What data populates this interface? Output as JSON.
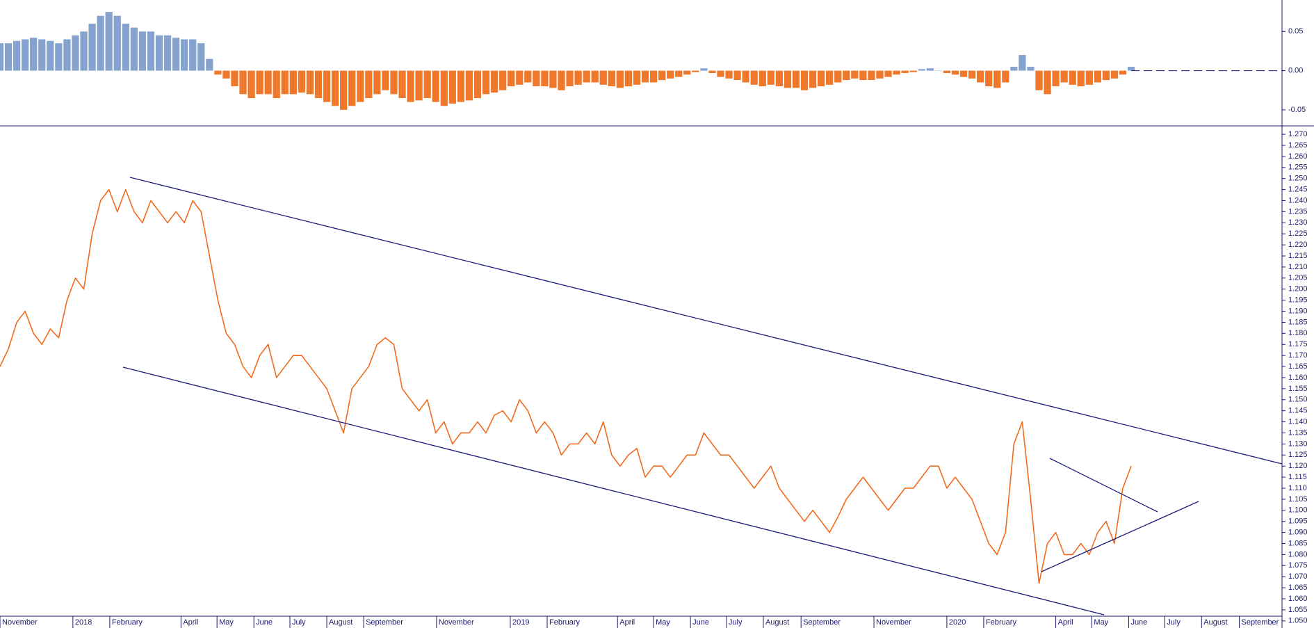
{
  "chart_data": [
    {
      "type": "bar",
      "color_positive": "#86a3cf",
      "color_negative": "#f0782a",
      "x": [
        0,
        1,
        2,
        3,
        4,
        5,
        6,
        7,
        8,
        9,
        10,
        11,
        12,
        13,
        14,
        15,
        16,
        17,
        18,
        19,
        20,
        21,
        22,
        23,
        24,
        25,
        26,
        27,
        28,
        29,
        30,
        31,
        32,
        33,
        34,
        35,
        36,
        37,
        38,
        39,
        40,
        41,
        42,
        43,
        44,
        45,
        46,
        47,
        48,
        49,
        50,
        51,
        52,
        53,
        54,
        55,
        56,
        57,
        58,
        59,
        60,
        61,
        62,
        63,
        64,
        65,
        66,
        67,
        68,
        69,
        70,
        71,
        72,
        73,
        74,
        75,
        76,
        77,
        78,
        79,
        80,
        81,
        82,
        83,
        84,
        85,
        86,
        87,
        88,
        89,
        90,
        91,
        92,
        93,
        94,
        95,
        96,
        97,
        98,
        99,
        100,
        101,
        102,
        103,
        104,
        105,
        106,
        107,
        108,
        109,
        110,
        111,
        112,
        113,
        114,
        115,
        116,
        117,
        118,
        119,
        120,
        121,
        122,
        123,
        124,
        125,
        126,
        127,
        128,
        129,
        130,
        131,
        132,
        133,
        134,
        135
      ],
      "values": [
        0.035,
        0.035,
        0.038,
        0.04,
        0.042,
        0.04,
        0.038,
        0.035,
        0.04,
        0.045,
        0.05,
        0.06,
        0.07,
        0.075,
        0.07,
        0.06,
        0.055,
        0.05,
        0.05,
        0.045,
        0.045,
        0.042,
        0.04,
        0.04,
        0.035,
        0.015,
        -0.005,
        -0.01,
        -0.02,
        -0.03,
        -0.035,
        -0.03,
        -0.03,
        -0.035,
        -0.03,
        -0.03,
        -0.028,
        -0.03,
        -0.035,
        -0.04,
        -0.045,
        -0.05,
        -0.045,
        -0.04,
        -0.035,
        -0.03,
        -0.025,
        -0.03,
        -0.035,
        -0.04,
        -0.038,
        -0.035,
        -0.04,
        -0.045,
        -0.042,
        -0.04,
        -0.038,
        -0.035,
        -0.03,
        -0.028,
        -0.025,
        -0.02,
        -0.018,
        -0.015,
        -0.02,
        -0.02,
        -0.022,
        -0.025,
        -0.02,
        -0.018,
        -0.015,
        -0.015,
        -0.018,
        -0.02,
        -0.022,
        -0.02,
        -0.018,
        -0.015,
        -0.015,
        -0.012,
        -0.01,
        -0.008,
        -0.005,
        -0.002,
        0.003,
        -0.003,
        -0.008,
        -0.01,
        -0.012,
        -0.015,
        -0.018,
        -0.02,
        -0.018,
        -0.02,
        -0.022,
        -0.022,
        -0.025,
        -0.022,
        -0.02,
        -0.018,
        -0.015,
        -0.012,
        -0.01,
        -0.012,
        -0.012,
        -0.01,
        -0.008,
        -0.005,
        -0.003,
        -0.002,
        0.002,
        0.003,
        0,
        -0.003,
        -0.005,
        -0.008,
        -0.01,
        -0.015,
        -0.02,
        -0.022,
        -0.015,
        0.005,
        0.02,
        0.005,
        -0.025,
        -0.03,
        -0.02,
        -0.015,
        -0.018,
        -0.02,
        -0.018,
        -0.015,
        -0.012,
        -0.01,
        -0.005,
        0.005
      ],
      "xlim": [
        0,
        153
      ],
      "ylim": [
        -0.0705,
        0.0902
      ],
      "yticks": [
        0.05,
        {
          "value": 0,
          "label": "0.00"
        },
        -0.05
      ]
    },
    {
      "type": "line",
      "color": "#f26b1d",
      "x": [
        0,
        1,
        2,
        3,
        4,
        5,
        6,
        7,
        8,
        9,
        10,
        11,
        12,
        13,
        14,
        15,
        16,
        17,
        18,
        19,
        20,
        21,
        22,
        23,
        24,
        25,
        26,
        27,
        28,
        29,
        30,
        31,
        32,
        33,
        34,
        35,
        36,
        37,
        38,
        39,
        40,
        41,
        42,
        43,
        44,
        45,
        46,
        47,
        48,
        49,
        50,
        51,
        52,
        53,
        54,
        55,
        56,
        57,
        58,
        59,
        60,
        61,
        62,
        63,
        64,
        65,
        66,
        67,
        68,
        69,
        70,
        71,
        72,
        73,
        74,
        75,
        76,
        77,
        78,
        79,
        80,
        81,
        82,
        83,
        84,
        85,
        86,
        87,
        88,
        89,
        90,
        91,
        92,
        93,
        94,
        95,
        96,
        97,
        98,
        99,
        100,
        101,
        102,
        103,
        104,
        105,
        106,
        107,
        108,
        109,
        110,
        111,
        112,
        113,
        114,
        115,
        116,
        117,
        118,
        119,
        120,
        121,
        122,
        123,
        124,
        125,
        126,
        127,
        128,
        129,
        130,
        131,
        132,
        133,
        134,
        135
      ],
      "values": [
        1.165,
        1.173,
        1.185,
        1.19,
        1.18,
        1.175,
        1.182,
        1.178,
        1.195,
        1.205,
        1.2,
        1.225,
        1.24,
        1.245,
        1.235,
        1.245,
        1.235,
        1.23,
        1.24,
        1.235,
        1.23,
        1.235,
        1.23,
        1.24,
        1.235,
        1.215,
        1.195,
        1.18,
        1.175,
        1.165,
        1.16,
        1.17,
        1.175,
        1.16,
        1.165,
        1.17,
        1.17,
        1.165,
        1.16,
        1.155,
        1.145,
        1.135,
        1.155,
        1.16,
        1.165,
        1.175,
        1.178,
        1.175,
        1.155,
        1.15,
        1.145,
        1.15,
        1.135,
        1.14,
        1.13,
        1.135,
        1.135,
        1.14,
        1.135,
        1.143,
        1.145,
        1.14,
        1.15,
        1.145,
        1.135,
        1.14,
        1.135,
        1.125,
        1.13,
        1.13,
        1.135,
        1.13,
        1.14,
        1.125,
        1.12,
        1.125,
        1.128,
        1.115,
        1.12,
        1.12,
        1.115,
        1.12,
        1.125,
        1.125,
        1.135,
        1.13,
        1.125,
        1.125,
        1.12,
        1.115,
        1.11,
        1.115,
        1.12,
        1.11,
        1.105,
        1.1,
        1.095,
        1.1,
        1.095,
        1.09,
        1.097,
        1.105,
        1.11,
        1.115,
        1.11,
        1.105,
        1.1,
        1.105,
        1.11,
        1.11,
        1.115,
        1.12,
        1.12,
        1.11,
        1.115,
        1.11,
        1.105,
        1.095,
        1.085,
        1.08,
        1.09,
        1.13,
        1.14,
        1.105,
        1.067,
        1.085,
        1.09,
        1.08,
        1.08,
        1.085,
        1.08,
        1.09,
        1.095,
        1.085,
        1.11,
        1.12
      ],
      "xlim": [
        0,
        153
      ],
      "ylim": [
        1.0468,
        1.2738
      ],
      "xticks": [
        {
          "value": 0,
          "label": "November"
        },
        {
          "value": 8.7,
          "label": "2018"
        },
        {
          "value": 13.1,
          "label": "February"
        },
        {
          "value": 21.6,
          "label": "April"
        },
        {
          "value": 25.9,
          "label": "May"
        },
        {
          "value": 30.3,
          "label": "June"
        },
        {
          "value": 34.6,
          "label": "July"
        },
        {
          "value": 39,
          "label": "August"
        },
        {
          "value": 43.4,
          "label": "September"
        },
        {
          "value": 52.1,
          "label": "November"
        },
        {
          "value": 60.9,
          "label": "2019"
        },
        {
          "value": 65.3,
          "label": "February"
        },
        {
          "value": 73.7,
          "label": "April"
        },
        {
          "value": 78,
          "label": "May"
        },
        {
          "value": 82.4,
          "label": "June"
        },
        {
          "value": 86.7,
          "label": "July"
        },
        {
          "value": 91.1,
          "label": "August"
        },
        {
          "value": 95.6,
          "label": "September"
        },
        {
          "value": 104.3,
          "label": "November"
        },
        {
          "value": 113,
          "label": "2020"
        },
        {
          "value": 117.4,
          "label": "February"
        },
        {
          "value": 126,
          "label": "April"
        },
        {
          "value": 130.3,
          "label": "May"
        },
        {
          "value": 134.7,
          "label": "June"
        },
        {
          "value": 139,
          "label": "July"
        },
        {
          "value": 143.4,
          "label": "August"
        },
        {
          "value": 147.9,
          "label": "September"
        }
      ],
      "yticks": [
        {
          "value": 1.05,
          "label": "1.050"
        },
        {
          "value": 1.055,
          "label": "1.055"
        },
        {
          "value": 1.06,
          "label": "1.060"
        },
        {
          "value": 1.065,
          "label": "1.065"
        },
        {
          "value": 1.07,
          "label": "1.070"
        },
        {
          "value": 1.075,
          "label": "1.075"
        },
        {
          "value": 1.08,
          "label": "1.080"
        },
        {
          "value": 1.085,
          "label": "1.085"
        },
        {
          "value": 1.09,
          "label": "1.090"
        },
        {
          "value": 1.095,
          "label": "1.095"
        },
        {
          "value": 1.1,
          "label": "1.100"
        },
        {
          "value": 1.105,
          "label": "1.105"
        },
        {
          "value": 1.11,
          "label": "1.110"
        },
        {
          "value": 1.115,
          "label": "1.115"
        },
        {
          "value": 1.12,
          "label": "1.120"
        },
        {
          "value": 1.125,
          "label": "1.125"
        },
        {
          "value": 1.13,
          "label": "1.130"
        },
        {
          "value": 1.135,
          "label": "1.135"
        },
        {
          "value": 1.14,
          "label": "1.140"
        },
        {
          "value": 1.145,
          "label": "1.145"
        },
        {
          "value": 1.15,
          "label": "1.150"
        },
        {
          "value": 1.155,
          "label": "1.155"
        },
        {
          "value": 1.16,
          "label": "1.160"
        },
        {
          "value": 1.165,
          "label": "1.165"
        },
        {
          "value": 1.17,
          "label": "1.170"
        },
        {
          "value": 1.175,
          "label": "1.175"
        },
        {
          "value": 1.18,
          "label": "1.180"
        },
        {
          "value": 1.185,
          "label": "1.185"
        },
        {
          "value": 1.19,
          "label": "1.190"
        },
        {
          "value": 1.195,
          "label": "1.195"
        },
        {
          "value": 1.2,
          "label": "1.200"
        },
        {
          "value": 1.205,
          "label": "1.205"
        },
        {
          "value": 1.21,
          "label": "1.210"
        },
        {
          "value": 1.215,
          "label": "1.215"
        },
        {
          "value": 1.22,
          "label": "1.220"
        },
        {
          "value": 1.225,
          "label": "1.225"
        },
        {
          "value": 1.23,
          "label": "1.230"
        },
        {
          "value": 1.235,
          "label": "1.235"
        },
        {
          "value": 1.24,
          "label": "1.240"
        },
        {
          "value": 1.245,
          "label": "1.245"
        },
        {
          "value": 1.25,
          "label": "1.250"
        },
        {
          "value": 1.255,
          "label": "1.255"
        },
        {
          "value": 1.26,
          "label": "1.260"
        },
        {
          "value": 1.265,
          "label": "1.265"
        },
        {
          "value": 1.27,
          "label": "1.270"
        }
      ]
    }
  ]
}
